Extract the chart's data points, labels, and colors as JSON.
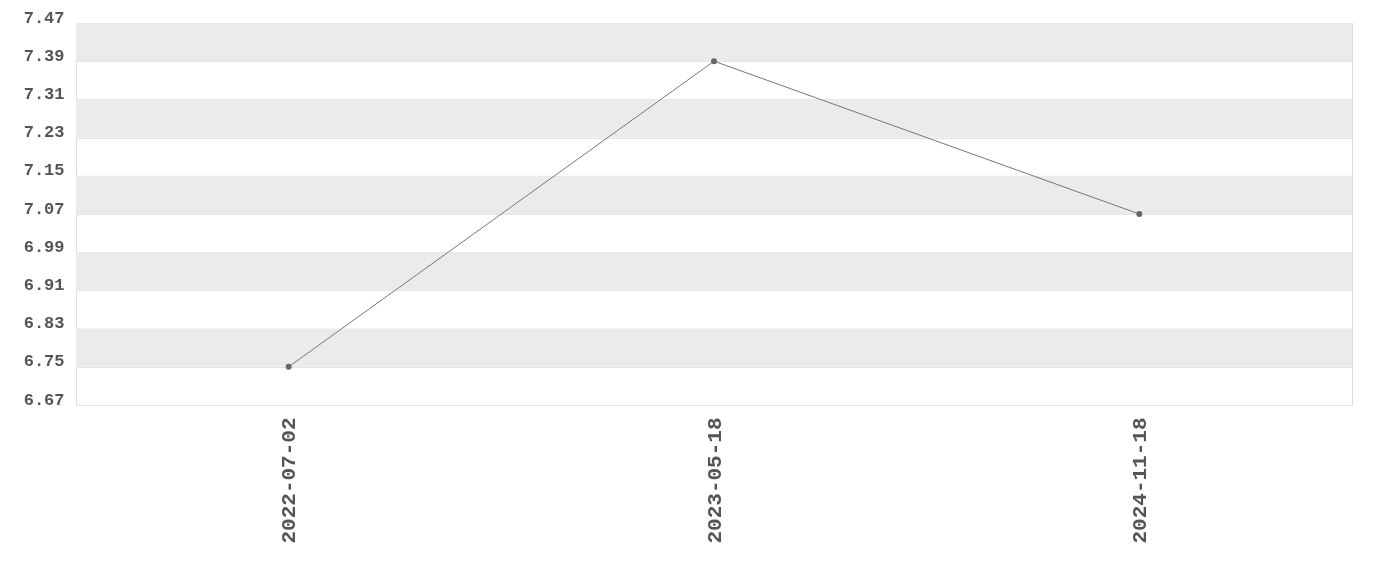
{
  "chart_data": {
    "type": "line",
    "categories": [
      "2022-07-02",
      "2023-05-18",
      "2024-11-18"
    ],
    "series": [
      {
        "color": "#777777",
        "values": [
          6.75,
          7.39,
          7.07
        ]
      }
    ],
    "ylim": [
      6.67,
      7.47
    ],
    "yticks": [
      6.67,
      6.75,
      6.83,
      6.91,
      6.99,
      7.07,
      7.15,
      7.23,
      7.31,
      7.39,
      7.47
    ],
    "grid": true,
    "marker": "circle",
    "line_style": "solid"
  }
}
